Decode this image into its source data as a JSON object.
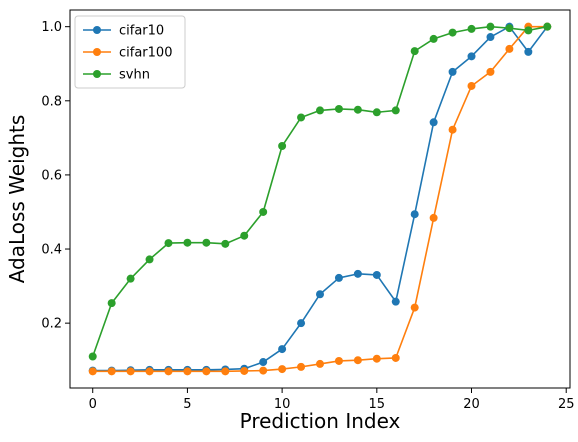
{
  "chart_data": {
    "type": "line",
    "xlabel": "Prediction Index",
    "ylabel": "AdaLoss Weights",
    "xlim": [
      -1.2,
      25.2
    ],
    "ylim": [
      0.025,
      1.045
    ],
    "xticks": [
      0,
      5,
      10,
      15,
      20,
      25
    ],
    "yticks": [
      0.2,
      0.4,
      0.6,
      0.8,
      1.0
    ],
    "xtick_labels": [
      "0",
      "5",
      "10",
      "15",
      "20",
      "25"
    ],
    "ytick_labels": [
      "0.2",
      "0.4",
      "0.6",
      "0.8",
      "1.0"
    ],
    "grid": false,
    "legend_position": "upper-left",
    "x": [
      0,
      1,
      2,
      3,
      4,
      5,
      6,
      7,
      8,
      9,
      10,
      11,
      12,
      13,
      14,
      15,
      16,
      17,
      18,
      19,
      20,
      21,
      22,
      23,
      24
    ],
    "series": [
      {
        "name": "cifar10",
        "color": "#1f77b4",
        "values": [
          0.072,
          0.072,
          0.073,
          0.074,
          0.074,
          0.074,
          0.074,
          0.075,
          0.077,
          0.095,
          0.13,
          0.2,
          0.278,
          0.322,
          0.333,
          0.33,
          0.258,
          0.494,
          0.742,
          0.878,
          0.92,
          0.972,
          1.0,
          0.932,
          1.0
        ]
      },
      {
        "name": "cifar100",
        "color": "#ff7f0e",
        "values": [
          0.07,
          0.07,
          0.07,
          0.07,
          0.07,
          0.07,
          0.07,
          0.07,
          0.071,
          0.072,
          0.076,
          0.082,
          0.09,
          0.098,
          0.1,
          0.104,
          0.106,
          0.242,
          0.484,
          0.722,
          0.84,
          0.878,
          0.94,
          1.0,
          1.0
        ]
      },
      {
        "name": "svhn",
        "color": "#2ca02c",
        "values": [
          0.11,
          0.254,
          0.32,
          0.372,
          0.416,
          0.417,
          0.417,
          0.414,
          0.436,
          0.5,
          0.678,
          0.755,
          0.774,
          0.778,
          0.776,
          0.769,
          0.774,
          0.934,
          0.967,
          0.984,
          0.994,
          1.0,
          0.996,
          0.99,
          1.0
        ]
      }
    ]
  }
}
